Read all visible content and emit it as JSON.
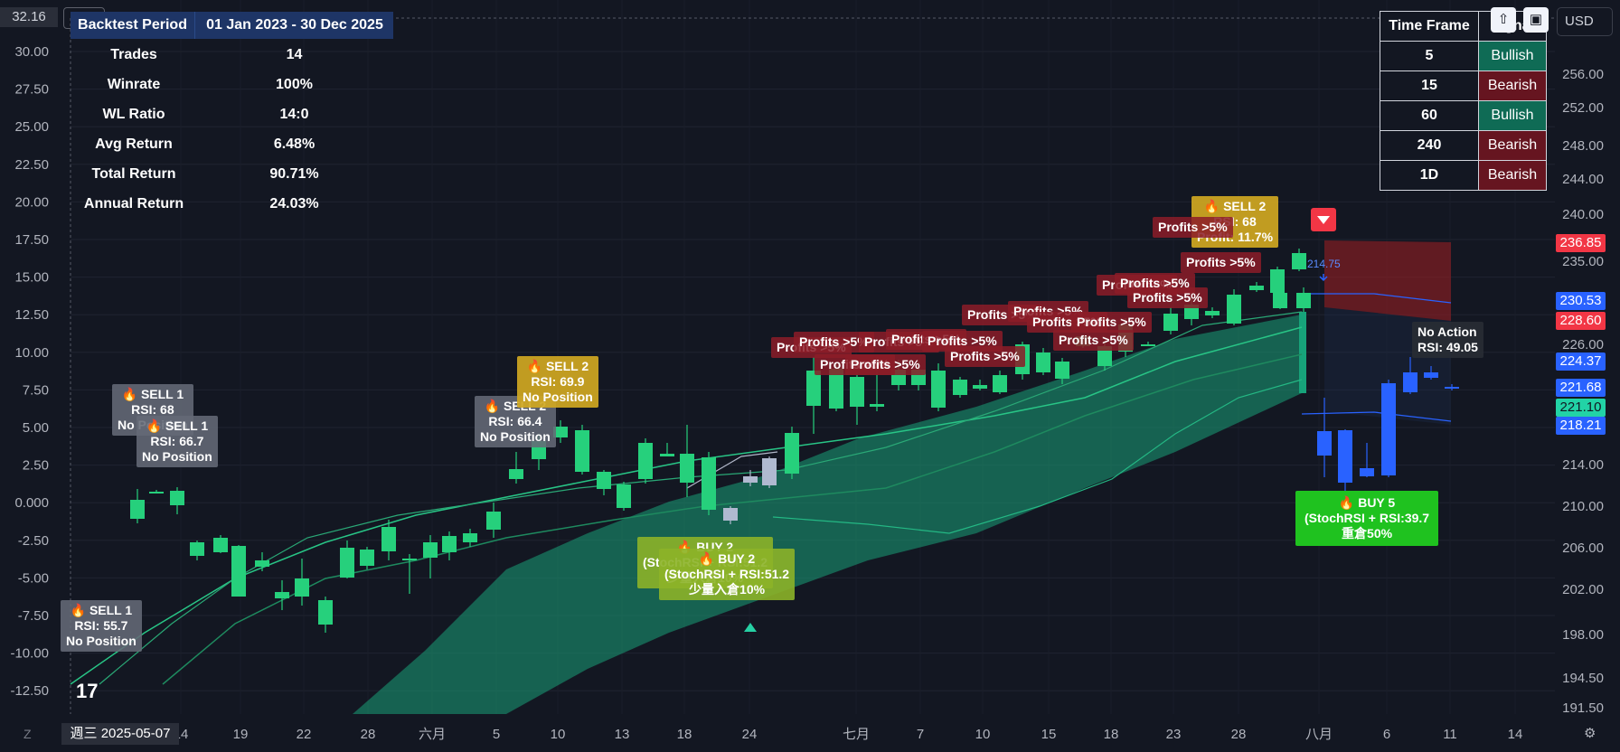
{
  "top_left": {
    "value": "32.16",
    "collapse_label": "2"
  },
  "currency": "USD",
  "backtest": {
    "header_label": "Backtest Period",
    "header_value": "01 Jan 2023 - 30 Dec 2025",
    "rows": [
      {
        "label": "Trades",
        "value": "14"
      },
      {
        "label": "Winrate",
        "value": "100%"
      },
      {
        "label": "WL Ratio",
        "value": "14:0"
      },
      {
        "label": "Avg Return",
        "value": "6.48%"
      },
      {
        "label": "Total Return",
        "value": "90.71%"
      },
      {
        "label": "Annual Return",
        "value": "24.03%"
      }
    ]
  },
  "timeframe_table": {
    "header": [
      "Time Frame",
      "Signal"
    ],
    "rows": [
      {
        "tf": "5",
        "signal": "Bullish"
      },
      {
        "tf": "15",
        "signal": "Bearish"
      },
      {
        "tf": "60",
        "signal": "Bullish"
      },
      {
        "tf": "240",
        "signal": "Bearish"
      },
      {
        "tf": "1D",
        "signal": "Bearish"
      }
    ]
  },
  "left_axis_ticks": [
    "30.00",
    "27.50",
    "25.00",
    "22.50",
    "20.00",
    "17.50",
    "15.00",
    "12.50",
    "10.00",
    "7.50",
    "5.00",
    "2.50",
    "0.000",
    "-2.50",
    "-5.00",
    "-7.50",
    "-10.00",
    "-12.50"
  ],
  "right_axis_ticks": [
    "256.00",
    "252.00",
    "248.00",
    "244.00",
    "240.00",
    "235.00",
    "230.00",
    "226.00",
    "222.00",
    "218.00",
    "214.00",
    "210.00",
    "206.00",
    "202.00",
    "198.00",
    "194.50",
    "191.50"
  ],
  "x_axis_ticks": [
    "14",
    "19",
    "22",
    "28",
    "六月",
    "5",
    "10",
    "13",
    "18",
    "24",
    "七月",
    "7",
    "10",
    "15",
    "18",
    "23",
    "28",
    "八月",
    "6",
    "11",
    "14"
  ],
  "price_badges": [
    {
      "value": "236.85",
      "color": "#f23645"
    },
    {
      "value": "230.53",
      "color": "#2962ff"
    },
    {
      "value": "228.60",
      "color": "#f23645"
    },
    {
      "value": "224.37",
      "color": "#2962ff"
    },
    {
      "value": "221.68",
      "color": "#2962ff"
    },
    {
      "value": "221.10",
      "color": "#22d3a6"
    },
    {
      "value": "218.21",
      "color": "#2962ff"
    }
  ],
  "labels": {
    "sell1_a": {
      "l1": "🔥 SELL 1",
      "l2": "RSI: 55.7",
      "l3": "No Position"
    },
    "sell1_b": {
      "l1": "🔥 SELL 1",
      "l2": "RSI: 68",
      "l3": "No Position"
    },
    "sell1_c": {
      "l1": "🔥 SELL 1",
      "l2": "RSI: 66.7",
      "l3": "No Position"
    },
    "sell2_a": {
      "l1": "🔥 SELL 2",
      "l2": "RSI: 66.4",
      "l3": "No Position"
    },
    "sell2_b": {
      "l1": "🔥 SELL 2",
      "l2": "RSI: 69.9",
      "l3": "No Position"
    },
    "sell2_c": {
      "l1": "🔥 SELL 2",
      "l2": "RSI: 68",
      "l3": "Profit: 11.7%"
    },
    "buy2": {
      "l1": "🔥 BUY 2",
      "l2": "(StochRSI + RSI:51.2",
      "l3": "少量入倉10%"
    },
    "buy5": {
      "l1": "🔥 BUY 5",
      "l2": "(StochRSI + RSI:39.7",
      "l3": "重倉50%"
    },
    "no_action": {
      "l1": "No Action",
      "l2": "RSI: 49.05"
    },
    "profits": "Profits >5%",
    "buy_price": "214.75"
  },
  "date_label": "週三 2025-05-07",
  "z_label": "Z"
}
